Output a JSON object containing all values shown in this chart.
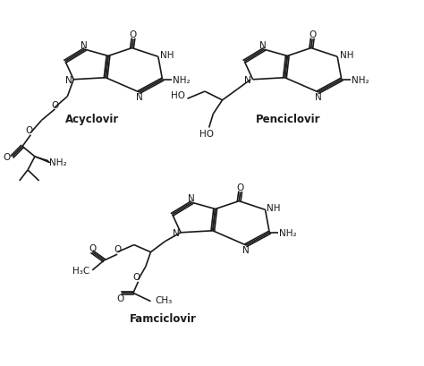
{
  "bg_color": "#ffffff",
  "line_color": "#1a1a1a",
  "line_width": 1.2,
  "font_size": 7.5,
  "label_fontsize": 8.5,
  "xlim": [
    0,
    10
  ],
  "ylim": [
    0,
    10
  ]
}
